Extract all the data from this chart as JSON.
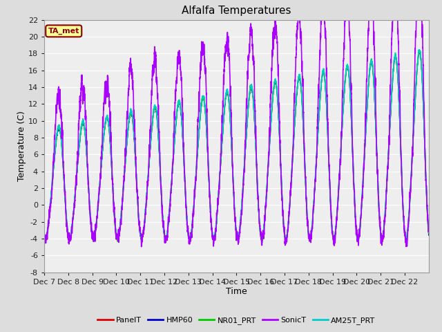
{
  "title": "Alfalfa Temperatures",
  "xlabel": "Time",
  "ylabel": "Temperature (C)",
  "ylim": [
    -8,
    22
  ],
  "yticks": [
    -8,
    -6,
    -4,
    -2,
    0,
    2,
    4,
    6,
    8,
    10,
    12,
    14,
    16,
    18,
    20,
    22
  ],
  "annotation_text": "TA_met",
  "annotation_color": "#8B0000",
  "annotation_bg": "#FFFF99",
  "annotation_border": "#8B0000",
  "series": {
    "PanelT": {
      "color": "#DD0000",
      "lw": 1.0
    },
    "HMP60": {
      "color": "#0000CC",
      "lw": 1.0
    },
    "NR01_PRT": {
      "color": "#00CC00",
      "lw": 1.2
    },
    "SonicT": {
      "color": "#AA00FF",
      "lw": 1.2
    },
    "AM25T_PRT": {
      "color": "#00CCCC",
      "lw": 1.2
    }
  },
  "bg_color": "#DDDDDD",
  "plot_bg": "#EEEEEE",
  "grid_color": "#FFFFFF",
  "num_days": 16,
  "start_day": 7,
  "points_per_day": 288
}
